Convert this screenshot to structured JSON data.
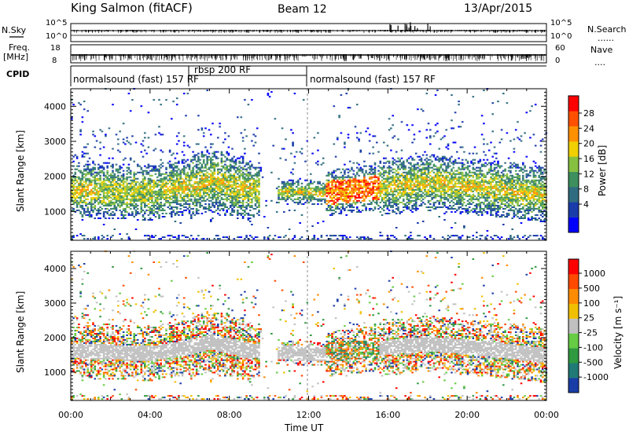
{
  "header": {
    "station": "King Salmon (fitACF)",
    "beam": "Beam 12",
    "date": "13/Apr/2015"
  },
  "panels": {
    "nsky_label": "N.Sky",
    "nsky_ticks": [
      "10^5",
      "10^0"
    ],
    "nsearch_label": "N.Search",
    "nsearch_ticks": [
      "10^5",
      "10^0"
    ],
    "freq_label_1": "Freq.",
    "freq_label_2": "[MHz]",
    "freq_ticks": [
      "18",
      "8"
    ],
    "nave_label": "Nave",
    "nave_ticks": [
      "60",
      "0"
    ],
    "cpid_label": "CPID",
    "cpid_segments": [
      "normalsound (fast) 157 RF",
      "rbsp 200 RF",
      "normalsound (fast) 157 RF"
    ]
  },
  "axes": {
    "ylabel": "Slant Range [km]",
    "yticks": [
      "4000",
      "3000",
      "2000",
      "1000"
    ],
    "xlabel": "Time UT",
    "xticks": [
      "00:00",
      "04:00",
      "08:00",
      "12:00",
      "16:00",
      "20:00",
      "00:00"
    ]
  },
  "power_scale": {
    "label": "Power [dB]",
    "ticks": [
      "28",
      "24",
      "20",
      "16",
      "12",
      "8",
      "4"
    ],
    "colors": [
      "#0000ff",
      "#1a3caa",
      "#2f6c80",
      "#3d8f5e",
      "#86c040",
      "#f0d000",
      "#ff9000",
      "#ff5000",
      "#ff0000"
    ]
  },
  "velocity_scale": {
    "label": "Velocity [m s⁻¹]",
    "ticks": [
      "1000",
      "500",
      "100",
      "25",
      "-25",
      "-100",
      "-500",
      "-1000"
    ],
    "colors": [
      "#1a3ea8",
      "#207a75",
      "#2f9a40",
      "#66cc44",
      "#c0c0c0",
      "#f0c000",
      "#ff8c00",
      "#ff4a00",
      "#ff0000"
    ]
  },
  "chart_data": {
    "type": "heatmap",
    "title": "King Salmon (fitACF) Beam 12 13/Apr/2015",
    "xlabel": "Time UT",
    "ylabel": "Slant Range [km]",
    "xlim": [
      "00:00",
      "24:00"
    ],
    "ylim": [
      180,
      4500
    ],
    "x_ticks": [
      "00:00",
      "04:00",
      "08:00",
      "12:00",
      "16:00",
      "20:00",
      "00:00"
    ],
    "y_ticks": [
      1000,
      2000,
      3000,
      4000
    ],
    "series": [
      {
        "name": "Power [dB]",
        "colorbar_range": [
          0,
          30
        ],
        "band_center_km": [
          [
            0,
            1600
          ],
          [
            2,
            1560
          ],
          [
            4,
            1520
          ],
          [
            6,
            1700
          ],
          [
            7,
            1850
          ],
          [
            9,
            1600
          ],
          [
            12.8,
            1500
          ],
          [
            15.2,
            1650
          ],
          [
            18,
            1800
          ],
          [
            21,
            1650
          ],
          [
            24,
            1450
          ]
        ]
      },
      {
        "name": "Velocity [m s-1]",
        "colorbar_range": [
          -1000,
          1000
        ]
      }
    ]
  }
}
